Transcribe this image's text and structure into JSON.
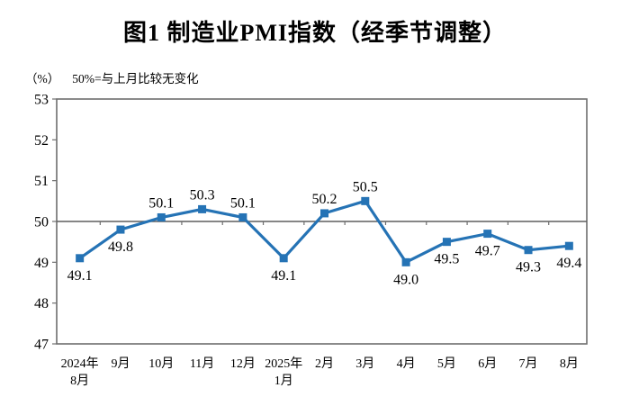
{
  "colors": {
    "line": "#2573B5",
    "marker": "#2573B5",
    "plot_border": "#6E6E6E",
    "reference_line": "#5F5F5F",
    "tick": "#6E6E6E",
    "text": "#000000",
    "background": "#FFFFFF"
  },
  "chart_data": {
    "type": "line",
    "title": "图1  制造业PMI指数（经季节调整）",
    "unit_label": "（%）",
    "note": "50%=与上月比较无变化",
    "series_name": "制造业PMI指数",
    "categories": [
      "2024年\n8月",
      "9月",
      "10月",
      "11月",
      "12月",
      "2025年\n1月",
      "2月",
      "3月",
      "4月",
      "5月",
      "6月",
      "7月",
      "8月"
    ],
    "values": [
      49.1,
      49.8,
      50.1,
      50.3,
      50.1,
      49.1,
      50.2,
      50.5,
      49.0,
      49.5,
      49.7,
      49.3,
      49.4
    ],
    "data_labels": [
      "49.1",
      "49.8",
      "50.1",
      "50.3",
      "50.1",
      "49.1",
      "50.2",
      "50.5",
      "49.0",
      "49.5",
      "49.7",
      "49.3",
      "49.4"
    ],
    "label_side": [
      "below",
      "below",
      "above",
      "above",
      "above",
      "below",
      "above",
      "above",
      "below",
      "below",
      "below",
      "below",
      "below"
    ],
    "ylim": [
      47,
      53
    ],
    "yticks": [
      47,
      48,
      49,
      50,
      51,
      52,
      53
    ],
    "reference_y": 50,
    "xlabel": "",
    "ylabel": "",
    "grid": "off",
    "legend": "none",
    "marker_shape": "square"
  }
}
